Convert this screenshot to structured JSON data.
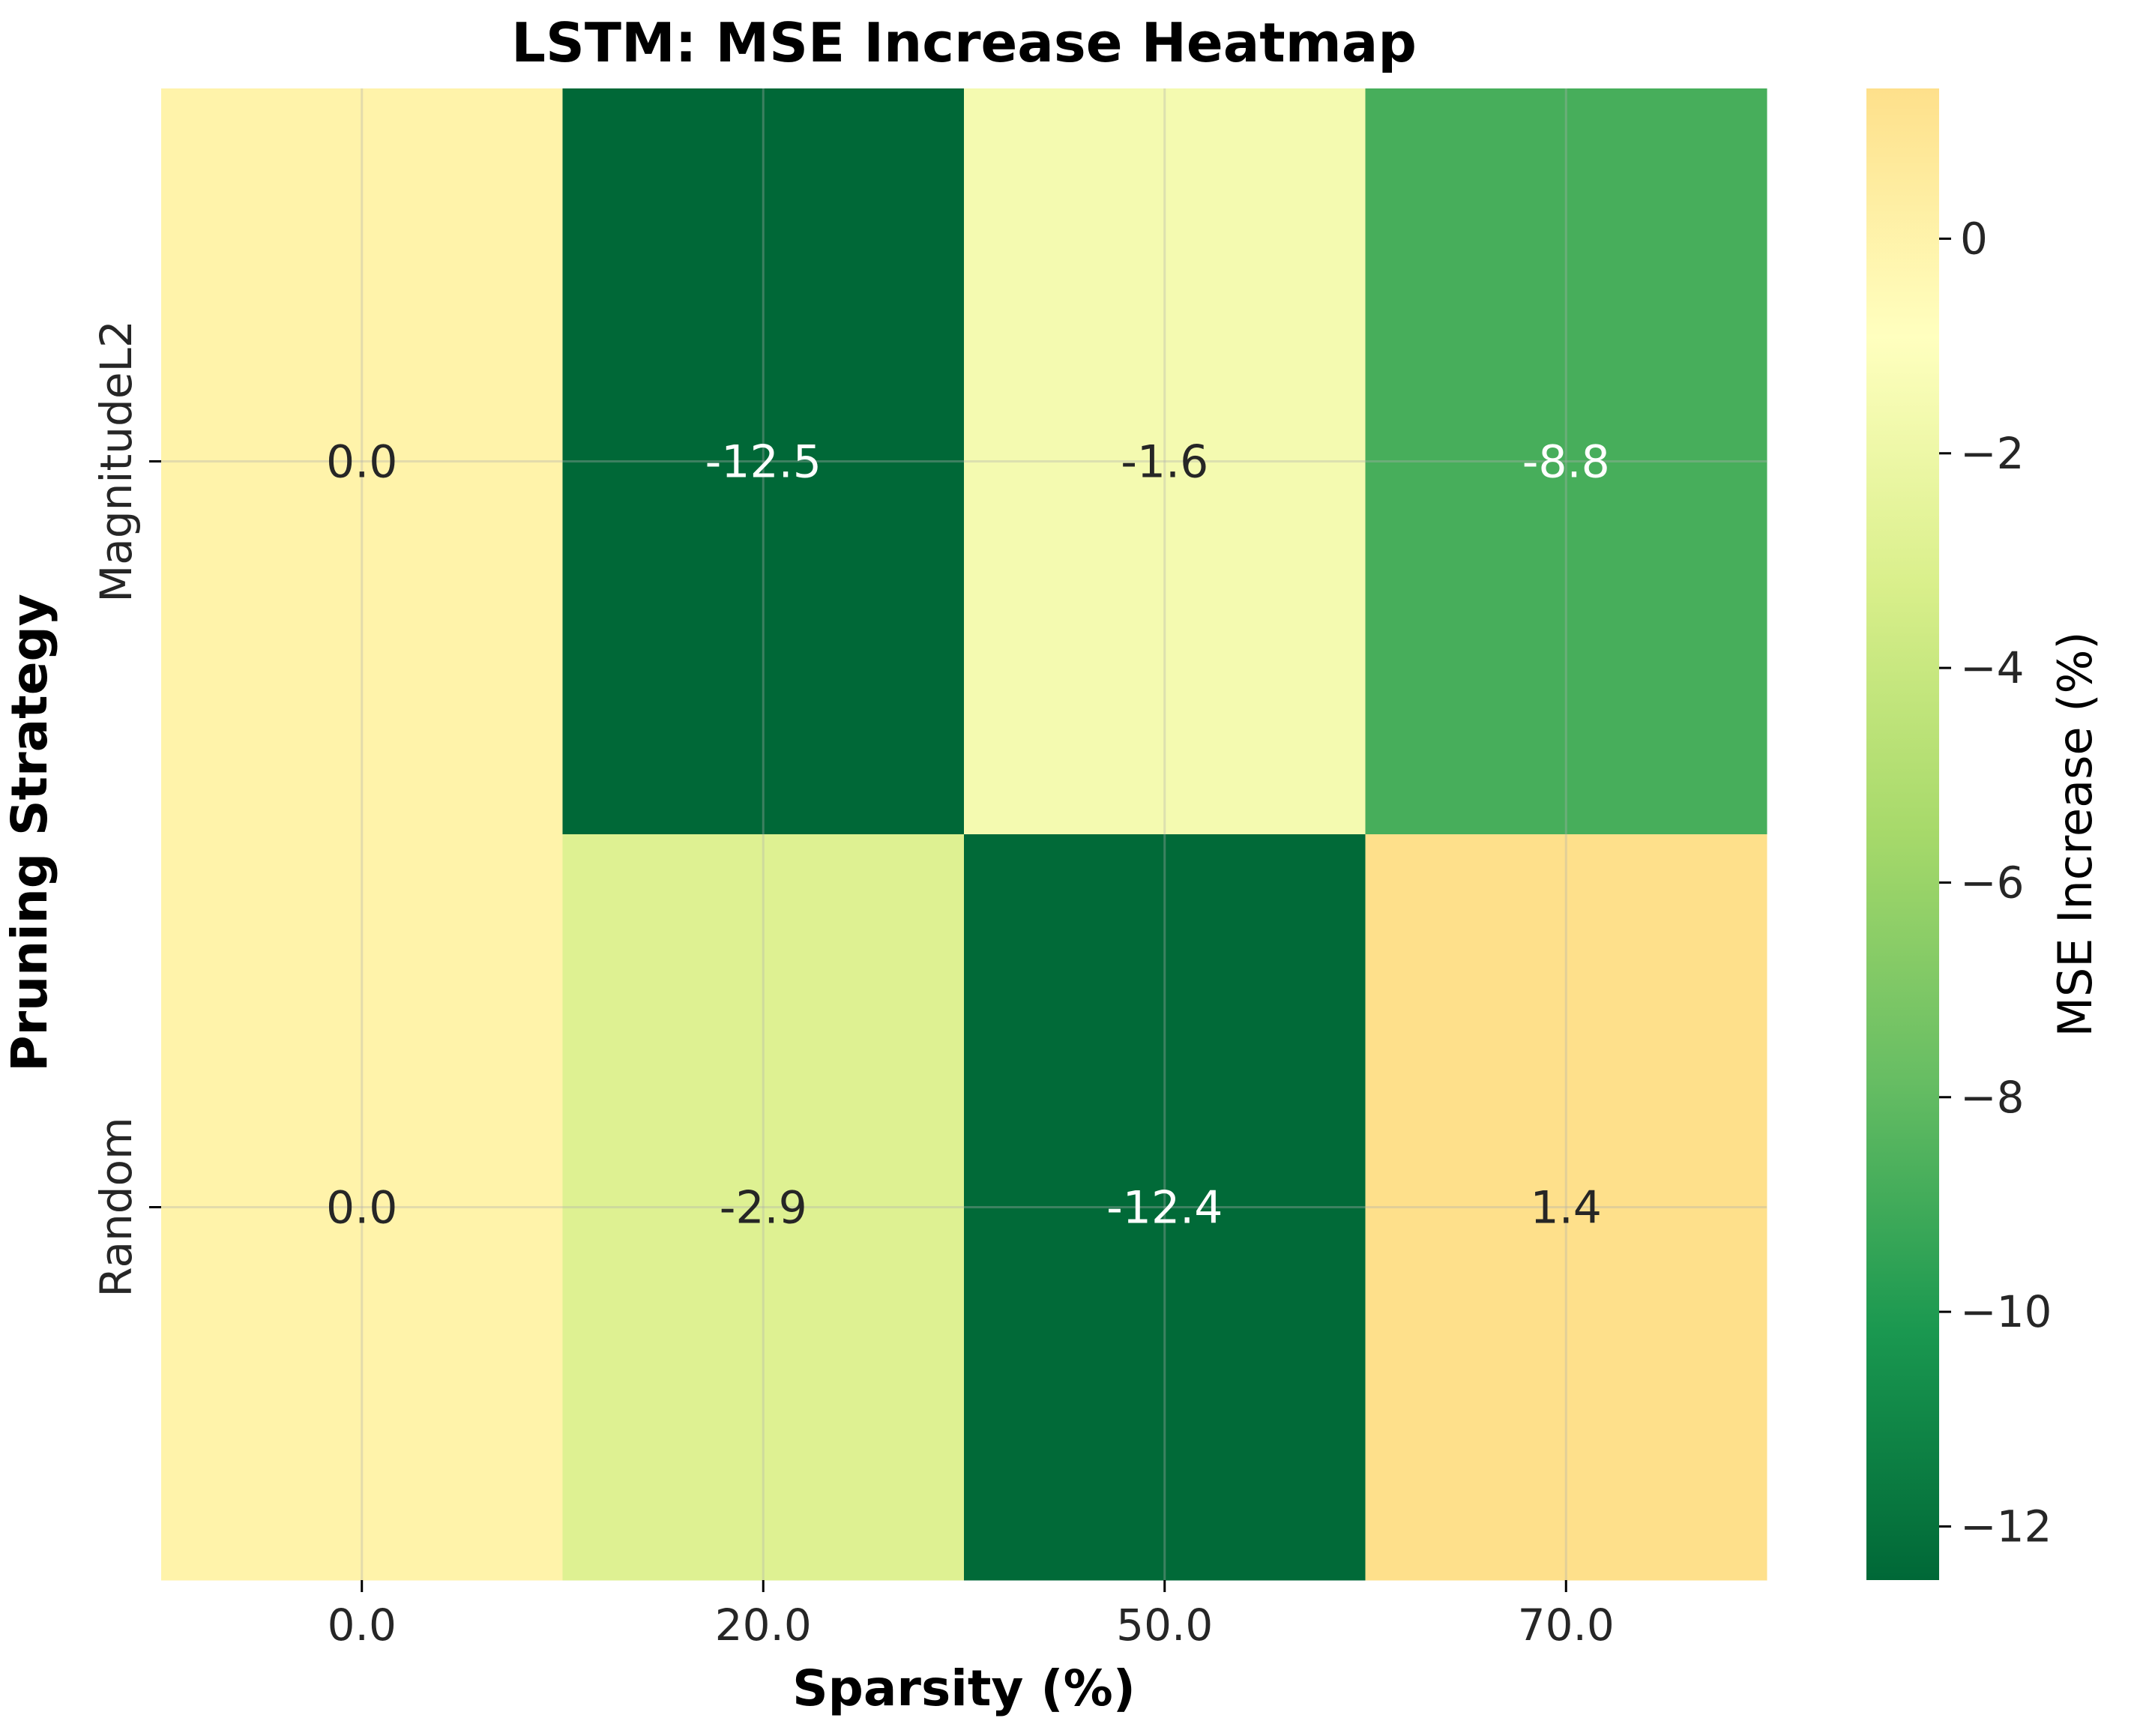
{
  "chart_data": {
    "type": "heatmap",
    "title": "LSTM: MSE Increase Heatmap",
    "xlabel": "Sparsity (%)",
    "ylabel": "Pruning Strategy",
    "x_categories": [
      "0.0",
      "20.0",
      "50.0",
      "70.0"
    ],
    "y_categories": [
      "MagnitudeL2",
      "Random"
    ],
    "values": [
      [
        0.0,
        -12.5,
        -1.6,
        -8.8
      ],
      [
        0.0,
        -2.9,
        -12.4,
        1.4
      ]
    ],
    "cell_labels": [
      [
        "0.0",
        "-12.5",
        "-1.6",
        "-8.8"
      ],
      [
        "0.0",
        "-2.9",
        "-12.4",
        "1.4"
      ]
    ],
    "colorbar": {
      "label": "MSE Increase (%)",
      "vmin": -12.5,
      "vmax": 1.4,
      "ticks": [
        0,
        -2,
        -4,
        -6,
        -8,
        -10,
        -12
      ],
      "tick_labels": [
        "0",
        "−2",
        "−4",
        "−6",
        "−8",
        "−10",
        "−12"
      ],
      "colormap": "YlGn-reversed"
    },
    "grid": true,
    "colors": {
      "colormap_stops": [
        "#006837",
        "#1a9850",
        "#66bd63",
        "#a6d96a",
        "#d9ef8b",
        "#ffffbf",
        "#fee08b"
      ],
      "dark_text": "#262626",
      "light_text": "#ffffff"
    }
  }
}
